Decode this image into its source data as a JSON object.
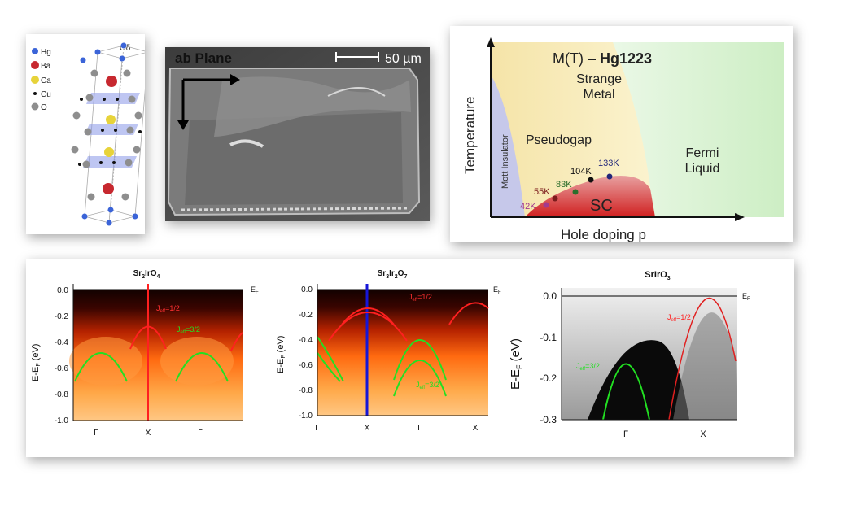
{
  "crystal": {
    "legend": [
      {
        "symbol": "Hg",
        "color": "#3b64d8"
      },
      {
        "symbol": "Ba",
        "color": "#c7282f"
      },
      {
        "symbol": "Ca",
        "color": "#e7d33a"
      },
      {
        "symbol": "Cu",
        "color": "#111111"
      },
      {
        "symbol": "O",
        "color": "#8e8e8e"
      }
    ],
    "delta_label": "Oδ"
  },
  "sem": {
    "title": "ab Plane",
    "scale_label": "50 µm"
  },
  "phase_diagram": {
    "title_prefix": "M(T) – ",
    "title_bold": "Hg1223",
    "ylabel": "Temperature",
    "xlabel": "Hole doping p",
    "regions": {
      "mott": "Mott Insulator",
      "pseudogap": "Pseudogap",
      "strange_metal_1": "Strange",
      "strange_metal_2": "Metal",
      "fermi_1": "Fermi",
      "fermi_2": "Liquid",
      "sc": "SC"
    },
    "points": [
      {
        "label": "42K",
        "color": "#a23a8f"
      },
      {
        "label": "55K",
        "color": "#7b1c1c"
      },
      {
        "label": "83K",
        "color": "#2c6e2c"
      },
      {
        "label": "104K",
        "color": "#111111"
      },
      {
        "label": "133K",
        "color": "#22277a"
      }
    ]
  },
  "arpes": {
    "ef_label": "E",
    "ef_sub": "F",
    "ylabel": "E-E",
    "ylabel_sub": "F",
    "ylabel_unit": " (eV)",
    "jeff_prefix": "J",
    "jeff_sub": "eff",
    "jeff_half": "=1/2",
    "jeff_threehalf": "=3/2",
    "plot1": {
      "title_parts": [
        "Sr",
        "2",
        "IrO",
        "4"
      ],
      "yticks": [
        "0.0",
        "-0.2",
        "-0.4",
        "-0.6",
        "-0.8",
        "-1.0"
      ],
      "xticks": [
        "Γ",
        "X",
        "Γ"
      ]
    },
    "plot2": {
      "title_parts": [
        "Sr",
        "3",
        "Ir",
        "2",
        "O",
        "7"
      ],
      "yticks": [
        "0.0",
        "-0.2",
        "-0.4",
        "-0.6",
        "-0.8",
        "-1.0"
      ],
      "xticks": [
        "Γ",
        "X",
        "Γ",
        "X"
      ]
    },
    "plot3": {
      "title_parts": [
        "SrIrO",
        "3"
      ],
      "yticks": [
        "0.0",
        "-0.1",
        "-0.2",
        "-0.3"
      ],
      "xticks": [
        "Γ",
        "X"
      ]
    }
  }
}
